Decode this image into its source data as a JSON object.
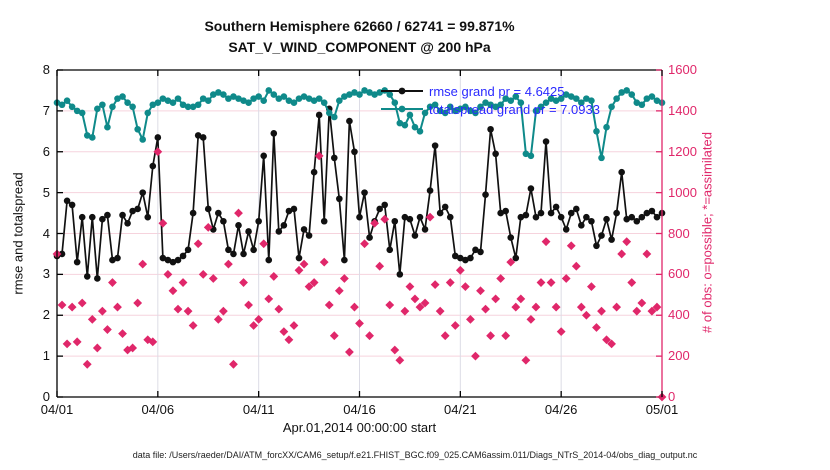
{
  "figure": {
    "footer": "data file: /Users/raeder/DAI/ATM_forcXX/CAM6_setup/f.e21.FHIST_BGC.f09_025.CAM6assim.011/Diags_NTrS_2014-04/obs_diag_output.nc"
  },
  "legend": {
    "text_color": "#2a2aff",
    "entries": [
      {
        "label": "rmse grand pr = 4.6425",
        "color": "#111111"
      },
      {
        "label": "totalspread grand pr = 7.0933",
        "color": "#0f8a8a"
      }
    ]
  },
  "chart_data": {
    "type": "line",
    "title": "Southern Hemisphere 62660 / 62741 = 99.871%",
    "subtitle": "SAT_V_WIND_COMPONENT @ 200 hPa",
    "xlabel": "Apr.01,2014 00:00:00 start",
    "x_tick_labels": [
      "04/01",
      "04/06",
      "04/11",
      "04/16",
      "04/21",
      "04/26",
      "05/01"
    ],
    "x_tick_days": [
      0,
      5,
      10,
      15,
      20,
      25,
      30
    ],
    "x_range_days": [
      0,
      30
    ],
    "points_per_day": 4,
    "grid": {
      "h_color": "#f6d3dd",
      "v_color": "#dcdce6"
    },
    "left_axis": {
      "label": "rmse and totalspread",
      "min": 0,
      "max": 8,
      "ticks": [
        0,
        1,
        2,
        3,
        4,
        5,
        6,
        7,
        8
      ],
      "color": "#000000"
    },
    "right_axis": {
      "label": "# of obs: o=possible; *=assimilated",
      "min": 0,
      "max": 1600,
      "ticks": [
        0,
        200,
        400,
        600,
        800,
        1000,
        1200,
        1400,
        1600
      ],
      "color": "#e0276a"
    },
    "series": [
      {
        "name": "rmse",
        "axis": "left",
        "color": "#111111",
        "marker": "circle",
        "line": true,
        "values": [
          3.45,
          3.5,
          4.8,
          4.7,
          3.3,
          4.4,
          2.95,
          4.4,
          2.9,
          4.35,
          4.45,
          3.35,
          3.4,
          4.45,
          4.25,
          4.55,
          4.6,
          5.0,
          4.4,
          5.65,
          6.35,
          3.4,
          3.35,
          3.3,
          3.35,
          3.45,
          3.6,
          4.5,
          6.4,
          6.35,
          4.6,
          4.1,
          4.5,
          4.3,
          3.6,
          3.5,
          4.2,
          3.5,
          4.05,
          3.6,
          4.3,
          5.9,
          3.35,
          6.45,
          4.05,
          4.2,
          4.55,
          4.6,
          3.4,
          4.1,
          3.95,
          5.5,
          6.9,
          4.3,
          7.05,
          5.85,
          4.85,
          3.35,
          6.75,
          6.0,
          4.4,
          5.0,
          3.9,
          4.3,
          4.6,
          4.7,
          3.6,
          4.3,
          3.0,
          4.4,
          4.35,
          3.95,
          4.4,
          4.1,
          5.05,
          6.15,
          4.5,
          4.65,
          4.4,
          3.45,
          3.4,
          3.35,
          3.4,
          3.6,
          3.55,
          4.95,
          6.55,
          5.95,
          4.5,
          4.55,
          3.9,
          3.4,
          4.4,
          4.45,
          5.1,
          4.4,
          4.5,
          6.25,
          4.5,
          4.65,
          4.4,
          4.1,
          4.5,
          4.6,
          4.2,
          4.4,
          4.3,
          3.7,
          3.95,
          4.35,
          3.85,
          4.5,
          5.5,
          4.35,
          4.4,
          4.3,
          4.4,
          4.5,
          4.55,
          4.4,
          4.5
        ]
      },
      {
        "name": "totalspread",
        "axis": "left",
        "color": "#0f8a8a",
        "marker": "circle",
        "line": true,
        "values": [
          7.2,
          7.15,
          7.25,
          7.1,
          7.0,
          6.95,
          6.4,
          6.35,
          7.05,
          7.15,
          6.6,
          7.1,
          7.3,
          7.35,
          7.2,
          7.1,
          6.55,
          6.3,
          6.95,
          7.15,
          7.2,
          7.3,
          7.25,
          7.2,
          7.3,
          7.15,
          7.1,
          7.1,
          7.15,
          7.3,
          7.25,
          7.4,
          7.45,
          7.4,
          7.3,
          7.35,
          7.3,
          7.25,
          7.2,
          7.3,
          7.35,
          7.25,
          7.5,
          7.4,
          7.3,
          7.35,
          7.25,
          7.2,
          7.3,
          7.35,
          7.3,
          7.25,
          7.3,
          7.2,
          6.95,
          6.85,
          7.25,
          7.35,
          7.4,
          7.45,
          7.4,
          7.5,
          7.45,
          7.4,
          7.45,
          7.5,
          7.4,
          7.2,
          6.7,
          6.65,
          6.9,
          6.6,
          6.5,
          6.95,
          7.1,
          7.15,
          7.0,
          6.95,
          7.1,
          7.0,
          7.05,
          7.1,
          7.0,
          6.95,
          7.1,
          7.2,
          7.15,
          7.1,
          7.15,
          7.3,
          7.25,
          7.35,
          7.2,
          5.95,
          5.9,
          7.0,
          7.1,
          7.2,
          7.3,
          7.25,
          7.3,
          7.4,
          7.35,
          7.3,
          7.2,
          7.3,
          7.25,
          6.5,
          5.85,
          6.6,
          7.1,
          7.3,
          7.45,
          7.5,
          7.4,
          7.2,
          7.15,
          7.3,
          7.35,
          7.25,
          7.2
        ]
      },
      {
        "name": "obs_assimilated",
        "axis": "right",
        "color": "#e0276a",
        "marker": "diamond",
        "line": false,
        "values": [
          700,
          450,
          260,
          440,
          270,
          460,
          160,
          380,
          240,
          420,
          330,
          560,
          440,
          310,
          230,
          240,
          460,
          650,
          280,
          270,
          1200,
          850,
          600,
          520,
          430,
          560,
          420,
          350,
          750,
          600,
          830,
          580,
          380,
          420,
          650,
          160,
          900,
          560,
          450,
          350,
          380,
          750,
          480,
          590,
          430,
          320,
          280,
          350,
          620,
          650,
          540,
          560,
          1180,
          660,
          450,
          300,
          520,
          580,
          220,
          440,
          360,
          750,
          300,
          850,
          640,
          870,
          450,
          230,
          180,
          420,
          540,
          480,
          440,
          460,
          880,
          550,
          420,
          300,
          560,
          350,
          620,
          540,
          380,
          200,
          520,
          430,
          300,
          480,
          580,
          300,
          660,
          440,
          480,
          180,
          380,
          440,
          560,
          760,
          560,
          440,
          320,
          580,
          740,
          640,
          440,
          400,
          540,
          340,
          420,
          280,
          260,
          440,
          700,
          760,
          560,
          420,
          460,
          700,
          420,
          440,
          0
        ]
      }
    ]
  }
}
